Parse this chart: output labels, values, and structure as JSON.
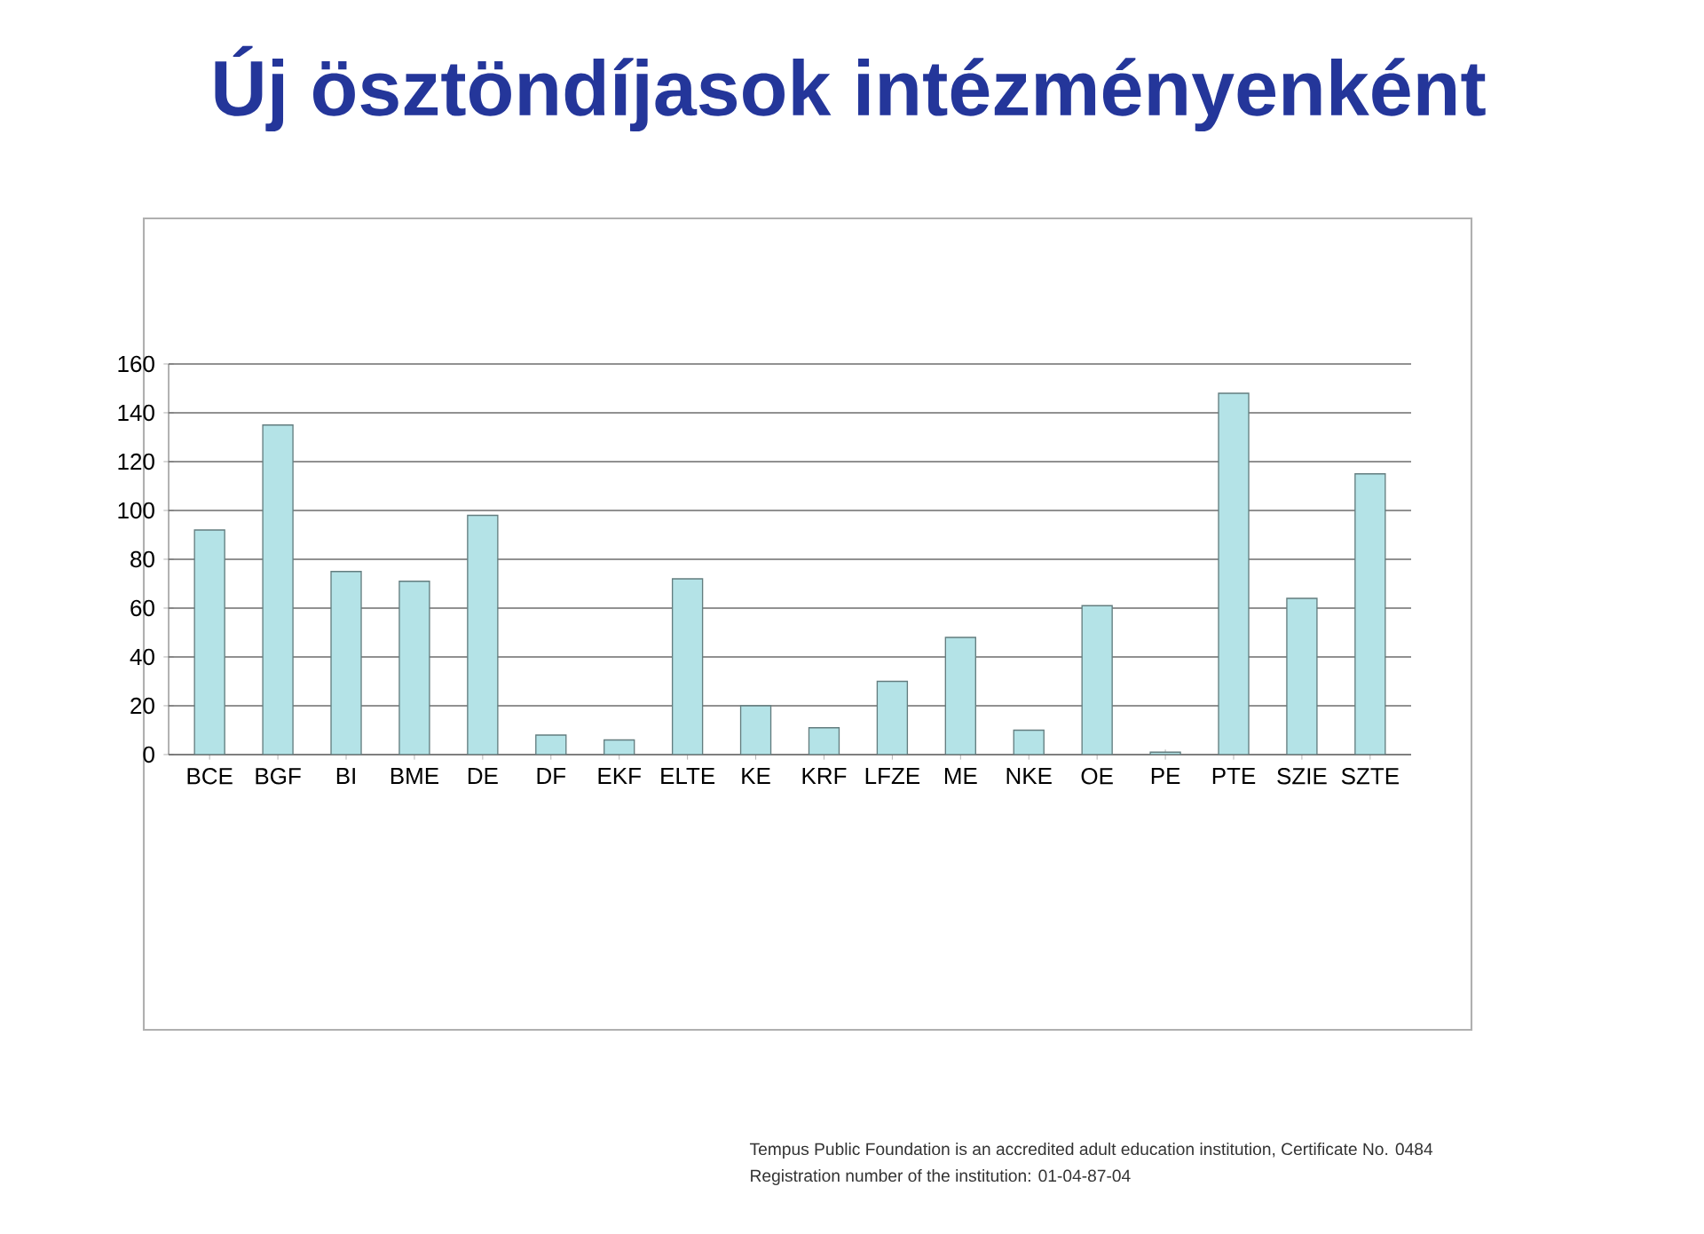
{
  "chart_data": {
    "type": "bar",
    "title": "Új ösztöndíjasok intézményenként",
    "categories": [
      "BCE",
      "BGF",
      "BI",
      "BME",
      "DE",
      "DF",
      "EKF",
      "ELTE",
      "KE",
      "KRF",
      "LFZE",
      "ME",
      "NKE",
      "OE",
      "PE",
      "PTE",
      "SZIE",
      "SZTE"
    ],
    "values": [
      92,
      135,
      75,
      71,
      98,
      8,
      6,
      72,
      20,
      11,
      30,
      48,
      10,
      61,
      1,
      148,
      64,
      115
    ],
    "color": "#b4e3e7",
    "ylim": [
      0,
      160
    ],
    "yticks": [
      0,
      20,
      40,
      60,
      80,
      100,
      120,
      140,
      160
    ],
    "grid": "y",
    "annotations": [
      "Tempus Public Foundation is an accredited adult education institution, Certificate No. 0484",
      "Registration number of the institution: 01-04-87-04"
    ]
  }
}
